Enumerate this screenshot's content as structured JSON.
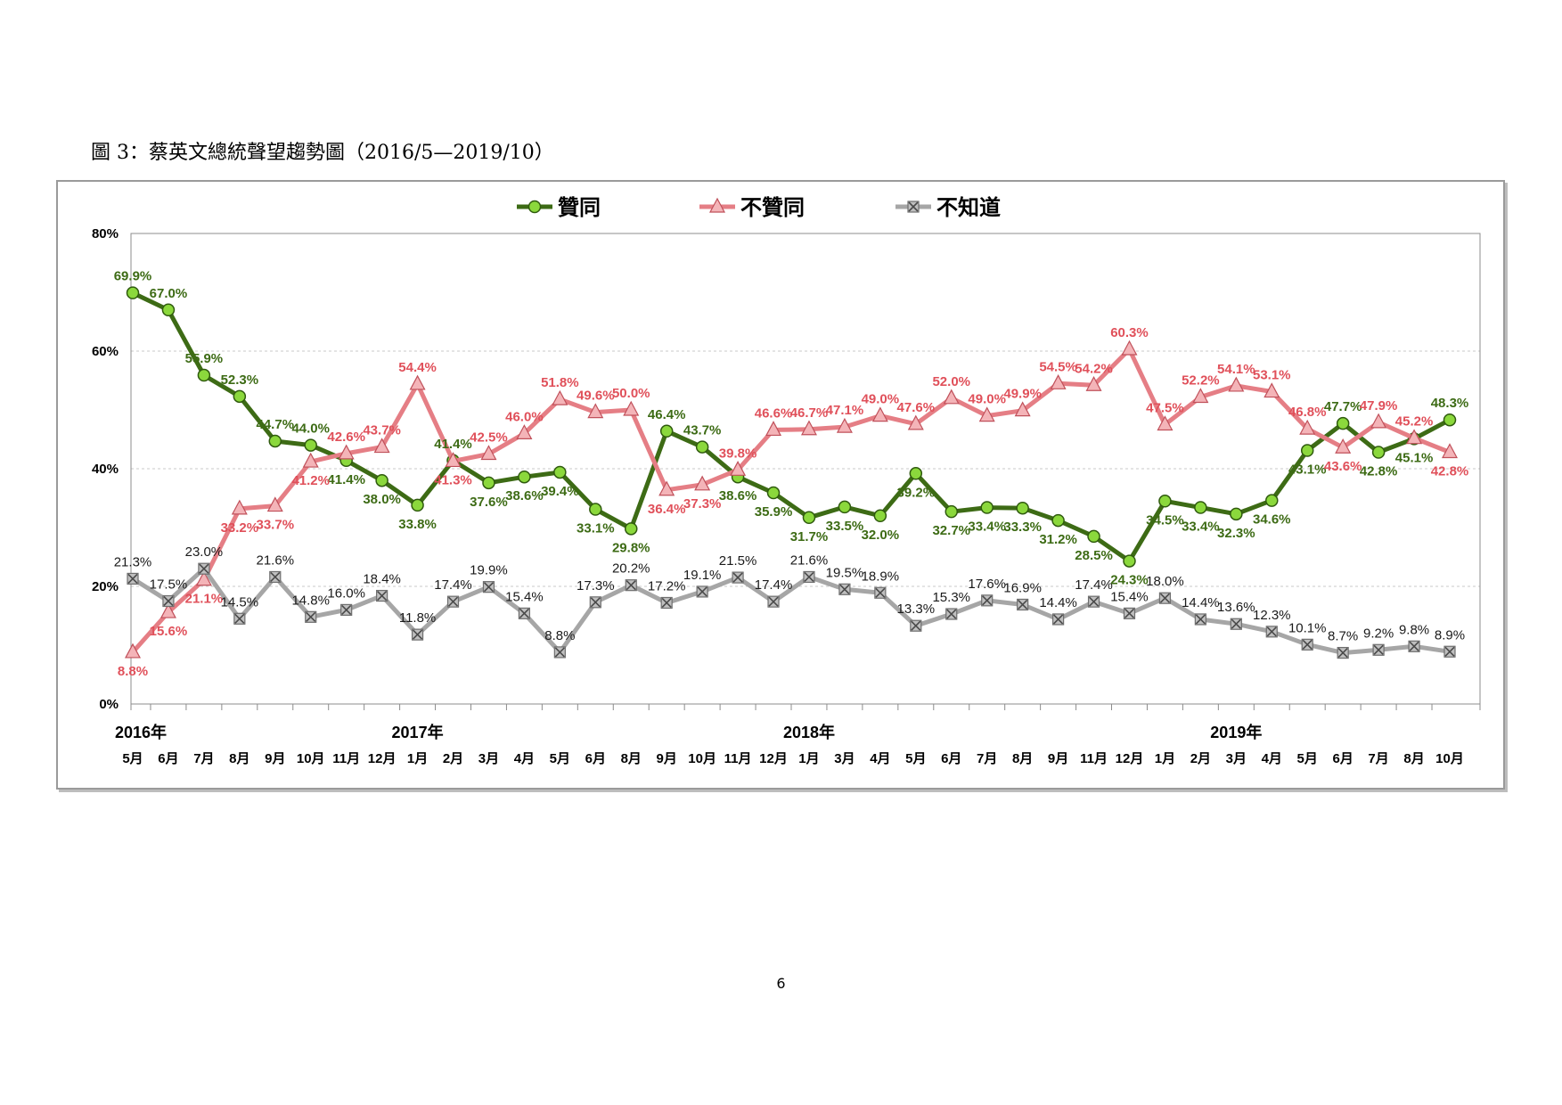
{
  "figure_title": "圖 3：蔡英文總統聲望趨勢圖（2016/5—2019/10）",
  "page_number": "6",
  "legend_labels": [
    "贊同",
    "不贊同",
    "不知道"
  ],
  "chart_data": {
    "type": "line",
    "title": "圖 3：蔡英文總統聲望趨勢圖（2016/5—2019/10）",
    "ylim": [
      0,
      80
    ],
    "y_ticks": [
      "0%",
      "20%",
      "40%",
      "60%",
      "80%"
    ],
    "grid": "horizontal dashed",
    "legend_position": "top-center",
    "year_labels": [
      {
        "label": "2016年",
        "index": 0
      },
      {
        "label": "2017年",
        "index": 8
      },
      {
        "label": "2018年",
        "index": 19
      },
      {
        "label": "2019年",
        "index": 31
      }
    ],
    "categories": [
      "5月",
      "6月",
      "7月",
      "8月",
      "9月",
      "10月",
      "11月",
      "12月",
      "1月",
      "2月",
      "3月",
      "4月",
      "5月",
      "6月",
      "8月",
      "9月",
      "10月",
      "11月",
      "12月",
      "1月",
      "3月",
      "4月",
      "5月",
      "6月",
      "7月",
      "8月",
      "9月",
      "11月",
      "12月",
      "1月",
      "2月",
      "3月",
      "4月",
      "5月",
      "6月",
      "7月",
      "8月",
      "10月"
    ],
    "series": [
      {
        "name": "贊同",
        "color": "#3d6b15",
        "marker": "circle",
        "marker_color": "#8bd83c",
        "values": [
          69.9,
          67.0,
          55.9,
          52.3,
          44.7,
          44.0,
          41.4,
          38.0,
          33.8,
          41.4,
          37.6,
          38.6,
          39.4,
          33.1,
          29.8,
          46.4,
          43.7,
          38.6,
          35.9,
          31.7,
          33.5,
          32.0,
          39.2,
          32.7,
          33.4,
          33.3,
          31.2,
          28.5,
          24.3,
          34.5,
          33.4,
          32.3,
          34.6,
          43.1,
          47.7,
          42.8,
          45.1,
          48.3
        ],
        "labels": [
          "69.9%",
          "67.0%",
          "55.9%",
          "52.3%",
          "44.7%",
          "44.0%",
          "41.4%",
          "38.0%",
          "33.8%",
          "41.4%",
          "37.6%",
          "38.6%",
          "39.4%",
          "33.1%",
          "29.8%",
          "46.4%",
          "43.7%",
          "38.6%",
          "35.9%",
          "31.7%",
          "33.5%",
          "32.0%",
          "39.2%",
          "32.7%",
          "33.4%",
          "33.3%",
          "31.2%",
          "28.5%",
          "24.3%",
          "34.5%",
          "33.4%",
          "32.3%",
          "34.6%",
          "43.1%",
          "47.7%",
          "42.8%",
          "45.1%",
          "48.3%"
        ]
      },
      {
        "name": "不贊同",
        "color": "#e57e85",
        "marker": "triangle",
        "marker_color": "#f4b4b8",
        "values": [
          8.8,
          15.6,
          21.1,
          33.2,
          33.7,
          41.2,
          42.6,
          43.7,
          54.4,
          41.3,
          42.5,
          46.0,
          51.8,
          49.6,
          50.0,
          36.4,
          37.3,
          39.8,
          46.6,
          46.7,
          47.1,
          49.0,
          47.6,
          52.0,
          49.0,
          49.9,
          54.5,
          54.2,
          60.3,
          47.5,
          52.2,
          54.1,
          53.1,
          46.8,
          43.6,
          47.9,
          45.2,
          42.8
        ],
        "labels": [
          "8.8%",
          "15.6%",
          "21.1%",
          "33.2%",
          "33.7%",
          "41.2%",
          "42.6%",
          "43.7%",
          "54.4%",
          "41.3%",
          "42.5%",
          "46.0%",
          "51.8%",
          "49.6%",
          "50.0%",
          "36.4%",
          "37.3%",
          "39.8%",
          "46.6%",
          "46.7%",
          "47.1%",
          "49.0%",
          "47.6%",
          "52.0%",
          "49.0%",
          "49.9%",
          "54.5%",
          "54.2%",
          "60.3%",
          "47.5%",
          "52.2%",
          "54.1%",
          "53.1%",
          "46.8%",
          "43.6%",
          "47.9%",
          "45.2%",
          "42.8%"
        ]
      },
      {
        "name": "不知道",
        "color": "#a6a6a6",
        "marker": "x-square",
        "marker_color": "#8c8c8c",
        "values": [
          21.3,
          17.5,
          23.0,
          14.5,
          21.6,
          14.8,
          16.0,
          18.4,
          11.8,
          17.4,
          19.9,
          15.4,
          8.8,
          17.3,
          20.2,
          17.2,
          19.1,
          21.5,
          17.4,
          21.6,
          19.5,
          18.9,
          13.3,
          15.3,
          17.6,
          16.9,
          14.4,
          17.4,
          15.4,
          18.0,
          14.4,
          13.6,
          12.3,
          10.1,
          8.7,
          9.2,
          9.8,
          8.9
        ],
        "labels": [
          "21.3%",
          "17.5%",
          "23.0%",
          "14.5%",
          "21.6%",
          "14.8%",
          "16.0%",
          "18.4%",
          "11.8%",
          "17.4%",
          "19.9%",
          "15.4%",
          "8.8%",
          "17.3%",
          "20.2%",
          "17.2%",
          "19.1%",
          "21.5%",
          "17.4%",
          "21.6%",
          "19.5%",
          "18.9%",
          "13.3%",
          "15.3%",
          "17.6%",
          "16.9%",
          "14.4%",
          "17.4%",
          "15.4%",
          "18.0%",
          "14.4%",
          "13.6%",
          "12.3%",
          "10.1%",
          "8.7%",
          "9.2%",
          "9.8%",
          "8.9%"
        ]
      }
    ]
  }
}
